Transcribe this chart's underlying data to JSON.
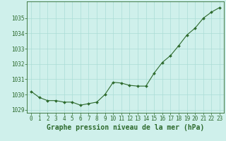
{
  "x": [
    0,
    1,
    2,
    3,
    4,
    5,
    6,
    7,
    8,
    9,
    10,
    11,
    12,
    13,
    14,
    15,
    16,
    17,
    18,
    19,
    20,
    21,
    22,
    23
  ],
  "y": [
    1030.2,
    1029.8,
    1029.6,
    1029.6,
    1029.5,
    1029.5,
    1029.3,
    1029.4,
    1029.5,
    1030.0,
    1030.8,
    1030.75,
    1030.6,
    1030.55,
    1030.55,
    1031.4,
    1032.1,
    1032.55,
    1033.2,
    1033.9,
    1034.35,
    1035.0,
    1035.4,
    1035.7
  ],
  "xlabel": "Graphe pression niveau de la mer (hPa)",
  "ylim": [
    1028.8,
    1036.1
  ],
  "xlim": [
    -0.5,
    23.5
  ],
  "yticks": [
    1029,
    1030,
    1031,
    1032,
    1033,
    1034,
    1035
  ],
  "xticks": [
    0,
    1,
    2,
    3,
    4,
    5,
    6,
    7,
    8,
    9,
    10,
    11,
    12,
    13,
    14,
    15,
    16,
    17,
    18,
    19,
    20,
    21,
    22,
    23
  ],
  "line_color": "#2d6a2d",
  "marker_color": "#2d6a2d",
  "bg_color": "#cff0eb",
  "grid_color": "#aaddd6",
  "axis_color": "#2d6a2d",
  "label_color": "#2d6a2d",
  "tick_label_fontsize": 5.5,
  "xlabel_fontsize": 7.0
}
